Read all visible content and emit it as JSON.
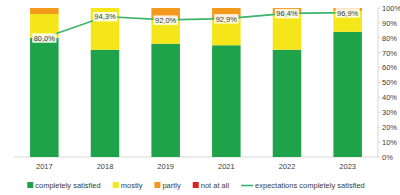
{
  "chart_data": {
    "type": "bar",
    "stacked": true,
    "categories": [
      "2017",
      "2018",
      "2019",
      "2021",
      "2022",
      "2023"
    ],
    "series": [
      {
        "name": "completely satisfied",
        "color": "#1fa34a",
        "values": [
          80,
          72,
          76,
          75,
          72,
          84
        ]
      },
      {
        "name": "mostly",
        "color": "#f5e61a",
        "values": [
          16,
          28,
          16,
          18,
          24,
          14
        ]
      },
      {
        "name": "partly",
        "color": "#f39a1c",
        "values": [
          4,
          0,
          8,
          7,
          4,
          2
        ]
      },
      {
        "name": "not at all",
        "color": "#e02020",
        "values": [
          0,
          0,
          0,
          0,
          0,
          0
        ]
      },
      {
        "name": "expectations completely satisfied",
        "type": "line",
        "color": "#3cb56a",
        "values": [
          80.0,
          94.3,
          92.0,
          92.9,
          96.4,
          96.9
        ],
        "value_labels": [
          "80,0%",
          "94,3%",
          "92,0%",
          "92,9%",
          "96,4%",
          "96,9%"
        ],
        "data_labels": true
      }
    ],
    "ylim": [
      0,
      100
    ],
    "yticks": [
      {
        "value": 0,
        "label": "0%"
      },
      {
        "value": 10,
        "label": "10%"
      },
      {
        "value": 20,
        "label": "20%"
      },
      {
        "value": 30,
        "label": "30%"
      },
      {
        "value": 40,
        "label": "40%"
      },
      {
        "value": 50,
        "label": "50%"
      },
      {
        "value": 60,
        "label": "60%"
      },
      {
        "value": 70,
        "label": "70%"
      },
      {
        "value": 80,
        "label": "80%"
      },
      {
        "value": 90,
        "label": "90%"
      },
      {
        "value": 100,
        "label": "100%"
      }
    ],
    "grid": false,
    "legend": "bottom"
  }
}
